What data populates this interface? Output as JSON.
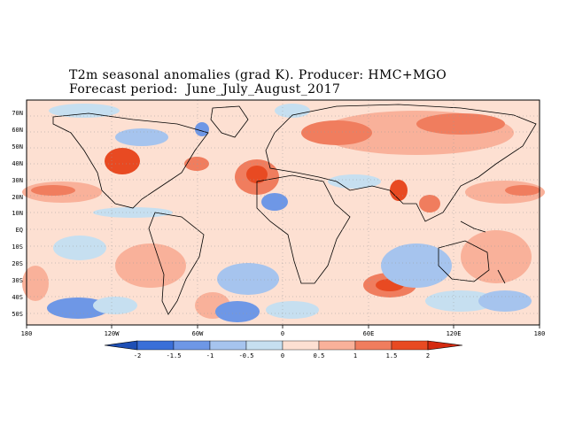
{
  "title": {
    "line1": "T2m seasonal anomalies (grad K). Producer: HMC+MGO",
    "line2": "Forecast period:  June_July_August_2017"
  },
  "lat_labels": [
    "70N",
    "60N",
    "50N",
    "40N",
    "30N",
    "20N",
    "10N",
    "EQ",
    "10S",
    "20S",
    "30S",
    "40S",
    "50S"
  ],
  "lon_labels": [
    "180",
    "120W",
    "60W",
    "0",
    "60E",
    "120E",
    "180"
  ],
  "colorbar": {
    "labels": [
      "-2",
      "-1.5",
      "-1",
      "-0.5",
      "0",
      "0.5",
      "1",
      "1.5",
      "2"
    ],
    "colors": [
      "#1e4fb5",
      "#3a6fd8",
      "#6e97e6",
      "#a6c4ee",
      "#c6dff0",
      "#fde0d2",
      "#f9b19a",
      "#f07d5e",
      "#e84a22",
      "#d42a10"
    ]
  },
  "map_colors": {
    "neutral_pos": "#fde0d2",
    "weak_pos": "#f9b19a",
    "mid_pos": "#f07d5e",
    "strong_pos": "#e84a22",
    "weak_neg": "#c6dff0",
    "mid_neg": "#a6c4ee",
    "strong_neg": "#6e97e6"
  }
}
